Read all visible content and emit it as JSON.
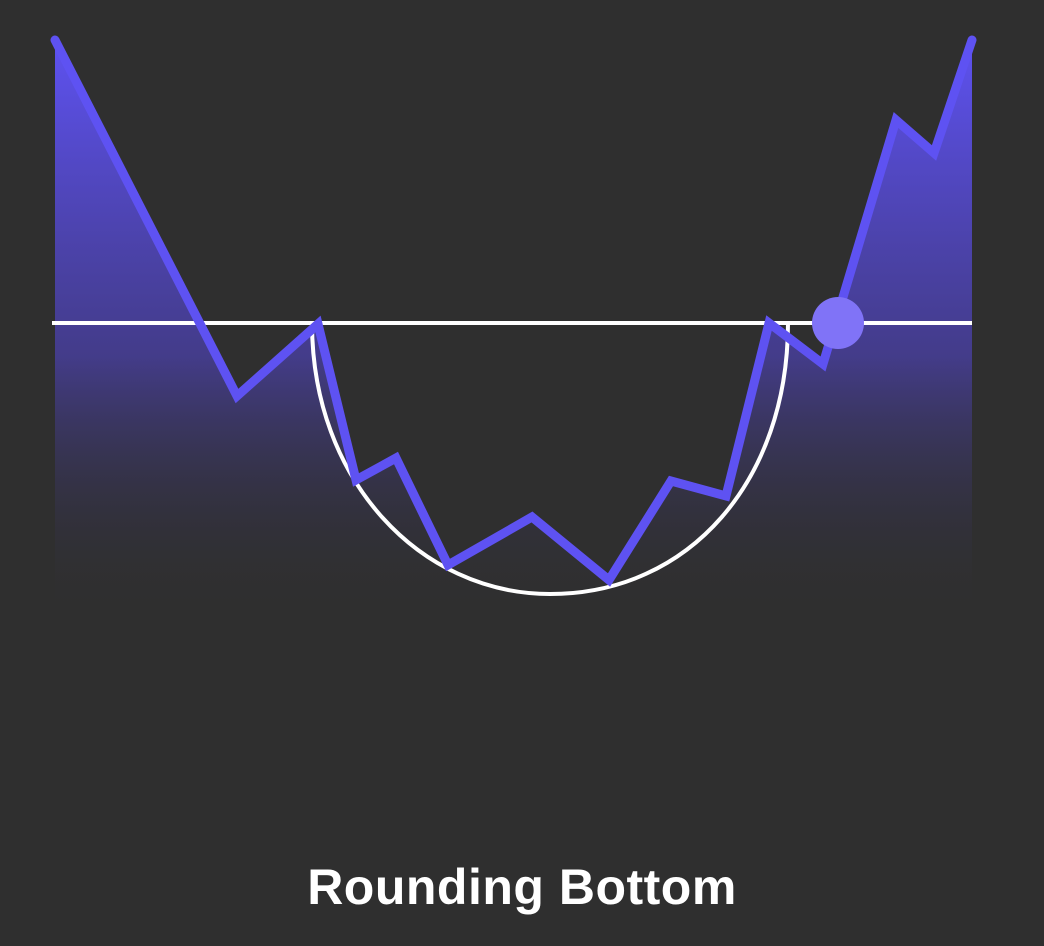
{
  "title": "Rounding Bottom",
  "colors": {
    "background": "#2f2f2f",
    "price_line": "#5e52f2",
    "fill_top": "#5e52f2",
    "fill_bottom": "#2f2f2f",
    "neckline": "#ffffff",
    "bowl_outline": "#ffffff",
    "breakout_marker": "#8073f7",
    "text": "#ffffff"
  }
}
